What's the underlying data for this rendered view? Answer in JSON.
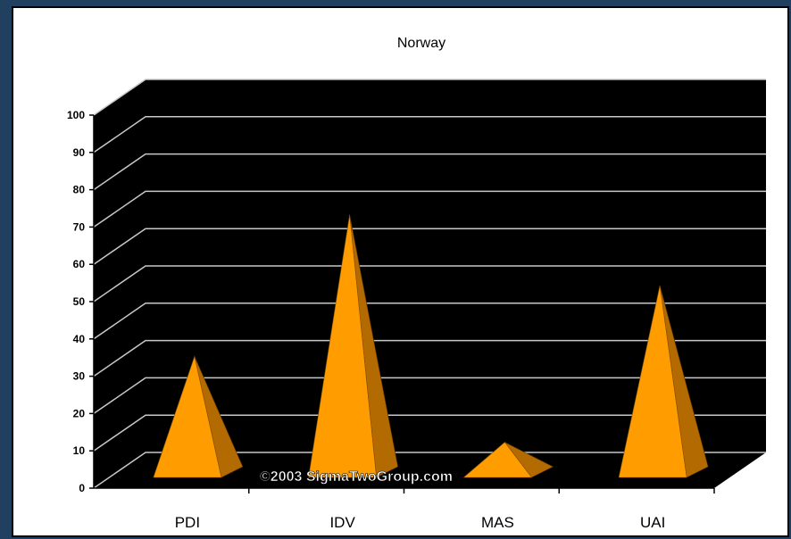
{
  "chart_data": {
    "type": "bar",
    "title": "Norway",
    "categories": [
      "PDI",
      "IDV",
      "MAS",
      "UAI"
    ],
    "values": [
      31,
      69,
      8,
      50
    ],
    "ylim": [
      0,
      100
    ],
    "yticks": [
      "0",
      "10",
      "20",
      "30",
      "40",
      "50",
      "60",
      "70",
      "80",
      "90",
      "100"
    ],
    "grid": true,
    "legend": "none",
    "style": "3d-pyramid",
    "colors": {
      "pyramid_front": "#ff9c00",
      "pyramid_side": "#b36a00",
      "plot_background": "#000000",
      "gridlines": "#c8c8c8",
      "frame_background": "#213f5f"
    },
    "watermark": "©2003 SigmaTwoGroup.com"
  }
}
